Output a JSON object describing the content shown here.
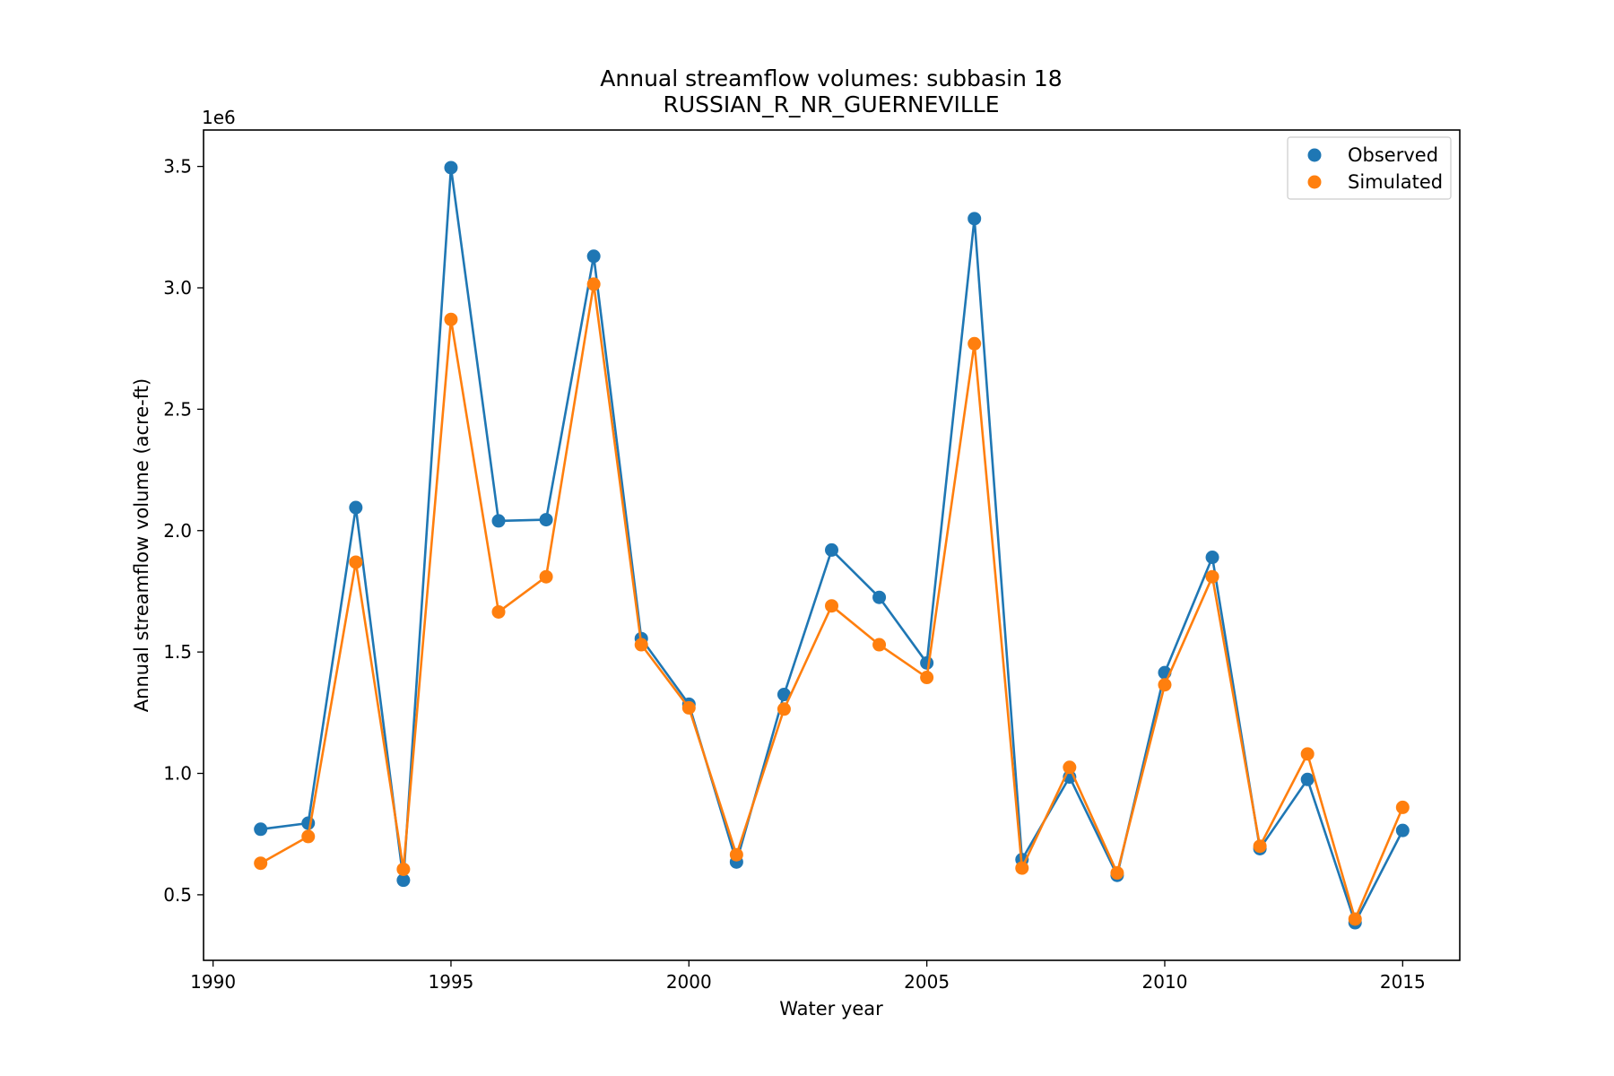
{
  "chart_data": {
    "type": "line",
    "title": "Annual streamflow volumes: subbasin 18",
    "subtitle": "RUSSIAN_R_NR_GUERNEVILLE",
    "xlabel": "Water year",
    "ylabel": "Annual streamflow volume (acre-ft)",
    "y_offset_label": "1e6",
    "y_scale": 1000000,
    "xlim": [
      1989.8,
      2016.2
    ],
    "ylim": [
      230000,
      3650000
    ],
    "xticks": [
      1990,
      1995,
      2000,
      2005,
      2010,
      2015
    ],
    "yticks": [
      500000,
      1000000,
      1500000,
      2000000,
      2500000,
      3000000,
      3500000
    ],
    "ytick_labels": [
      "0.5",
      "1.0",
      "1.5",
      "2.0",
      "2.5",
      "3.0",
      "3.5"
    ],
    "legend_position": "top-right",
    "x": [
      1991,
      1992,
      1993,
      1994,
      1995,
      1996,
      1997,
      1998,
      1999,
      2000,
      2001,
      2002,
      2003,
      2004,
      2005,
      2006,
      2007,
      2008,
      2009,
      2010,
      2011,
      2012,
      2013,
      2014,
      2015
    ],
    "series": [
      {
        "name": "Observed",
        "color": "#1f77b4",
        "values": [
          770000,
          795000,
          2095000,
          560000,
          3495000,
          2040000,
          2045000,
          3130000,
          1555000,
          1285000,
          635000,
          1325000,
          1920000,
          1725000,
          1455000,
          3285000,
          645000,
          985000,
          580000,
          1415000,
          1890000,
          690000,
          975000,
          385000,
          765000
        ]
      },
      {
        "name": "Simulated",
        "color": "#ff7f0e",
        "values": [
          630000,
          740000,
          1870000,
          605000,
          2870000,
          1665000,
          1810000,
          3015000,
          1530000,
          1270000,
          665000,
          1265000,
          1690000,
          1530000,
          1395000,
          2770000,
          610000,
          1025000,
          590000,
          1365000,
          1810000,
          700000,
          1080000,
          400000,
          860000
        ]
      }
    ]
  }
}
